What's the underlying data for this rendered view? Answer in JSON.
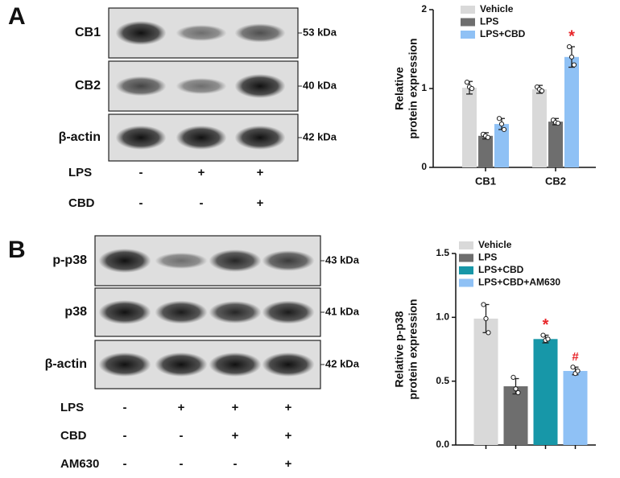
{
  "panels": [
    {
      "letter": "A",
      "blots": [
        {
          "name": "CB1",
          "size": "53 kDa"
        },
        {
          "name": "CB2",
          "size": "40 kDa"
        },
        {
          "name": "β-actin",
          "size": "42 kDa"
        }
      ],
      "treatments": [
        {
          "name": "LPS",
          "signs": [
            "-",
            "+",
            "+"
          ]
        },
        {
          "name": "CBD",
          "signs": [
            "-",
            "-",
            "+"
          ]
        }
      ]
    },
    {
      "letter": "B",
      "blots": [
        {
          "name": "p-p38",
          "size": "43 kDa"
        },
        {
          "name": "p38",
          "size": "41 kDa"
        },
        {
          "name": "β-actin",
          "size": "42 kDa"
        }
      ],
      "treatments": [
        {
          "name": "LPS",
          "signs": [
            "-",
            "+",
            "+",
            "+"
          ]
        },
        {
          "name": "CBD",
          "signs": [
            "-",
            "-",
            "+",
            "+"
          ]
        },
        {
          "name": "AM630",
          "signs": [
            "-",
            "-",
            "-",
            "+"
          ]
        }
      ]
    }
  ],
  "chart_data": [
    {
      "type": "bar",
      "ylabel": [
        "Relative",
        "protein expression"
      ],
      "categories": [
        "CB1",
        "CB2"
      ],
      "series": [
        {
          "name": "Vehicle",
          "color": "#d9d9d9",
          "values": [
            1.01,
            0.99
          ],
          "errors": [
            0.08,
            0.05
          ],
          "points": [
            [
              1.08,
              1.02,
              1.0
            ],
            [
              1.02,
              0.99,
              0.97
            ]
          ]
        },
        {
          "name": "LPS",
          "color": "#6e6e6e",
          "values": [
            0.4,
            0.58
          ],
          "errors": [
            0.04,
            0.04
          ],
          "points": [
            [
              0.42,
              0.4,
              0.38
            ],
            [
              0.6,
              0.57,
              0.56
            ]
          ]
        },
        {
          "name": "LPS+CBD",
          "color": "#8fc1f5",
          "values": [
            0.55,
            1.4
          ],
          "errors": [
            0.07,
            0.13
          ],
          "points": [
            [
              0.62,
              0.55,
              0.48
            ],
            [
              1.53,
              1.4,
              1.3
            ]
          ]
        }
      ],
      "ylim": [
        0,
        2
      ],
      "yticks": [
        0,
        1,
        2
      ],
      "annotations": [
        {
          "text": "*",
          "series": 2,
          "index": 1
        }
      ],
      "annotation_color": "#e8262a"
    },
    {
      "type": "bar",
      "ylabel": [
        "Relative p-p38",
        "protein expression"
      ],
      "categories": [
        null
      ],
      "series": [
        {
          "name": "Vehicle",
          "color": "#d9d9d9",
          "values": [
            0.99
          ],
          "errors": [
            0.11
          ],
          "points": [
            [
              1.1,
              0.99,
              0.88
            ]
          ]
        },
        {
          "name": "LPS",
          "color": "#6e6e6e",
          "values": [
            0.46
          ],
          "errors": [
            0.06
          ],
          "points": [
            [
              0.53,
              0.44,
              0.41
            ]
          ]
        },
        {
          "name": "LPS+CBD",
          "color": "#1797a8",
          "values": [
            0.83
          ],
          "errors": [
            0.03
          ],
          "points": [
            [
              0.86,
              0.82,
              0.83
            ]
          ]
        },
        {
          "name": "LPS+CBD+AM630",
          "color": "#8fc1f5",
          "values": [
            0.58
          ],
          "errors": [
            0.03
          ],
          "points": [
            [
              0.61,
              0.56,
              0.58
            ]
          ]
        }
      ],
      "ylim": [
        0,
        1.5
      ],
      "yticks": [
        {
          "value": 0,
          "label": "0.0"
        },
        0.5,
        {
          "value": 1,
          "label": "1.0"
        },
        1.5
      ],
      "annotations": [
        {
          "text": "*",
          "series": 2,
          "index": 0
        },
        {
          "text": "#",
          "series": 3,
          "index": 0
        }
      ],
      "annotation_color": "#e8262a"
    }
  ]
}
